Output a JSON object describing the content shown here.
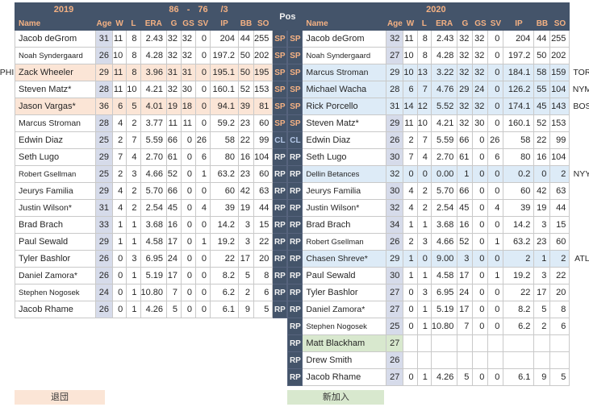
{
  "pos_header": "Pos",
  "columns": [
    "Name",
    "Age",
    "W",
    "L",
    "ERA",
    "G",
    "GS",
    "SV",
    "IP",
    "BB",
    "SO"
  ],
  "left_table": {
    "season": "2019",
    "record": {
      "wins": "86",
      "dash": "-",
      "losses": "76",
      "rank": "/3"
    },
    "rows": [
      {
        "name": "Jacob deGrom",
        "age": 31,
        "w": 11,
        "l": 8,
        "era": "2.43",
        "g": 32,
        "gs": 32,
        "sv": 0,
        "ip": "204",
        "bb": 44,
        "so": 255,
        "pos": "SP",
        "hl": ""
      },
      {
        "name": "Noah Syndergaard",
        "age": 26,
        "w": 10,
        "l": 8,
        "era": "4.28",
        "g": 32,
        "gs": 32,
        "sv": 0,
        "ip": "197.2",
        "bb": 50,
        "so": 202,
        "pos": "SP",
        "hl": ""
      },
      {
        "name": "Zack Wheeler",
        "age": 29,
        "w": 11,
        "l": 8,
        "era": "3.96",
        "g": 31,
        "gs": 31,
        "sv": 0,
        "ip": "195.1",
        "bb": 50,
        "so": 195,
        "pos": "SP",
        "hl": "departed"
      },
      {
        "name": "Steven Matz*",
        "age": 28,
        "w": 11,
        "l": 10,
        "era": "4.21",
        "g": 32,
        "gs": 30,
        "sv": 0,
        "ip": "160.1",
        "bb": 52,
        "so": 153,
        "pos": "SP",
        "hl": ""
      },
      {
        "name": "Jason Vargas*",
        "age": 36,
        "w": 6,
        "l": 5,
        "era": "4.01",
        "g": 19,
        "gs": 18,
        "sv": 0,
        "ip": "94.1",
        "bb": 39,
        "so": 81,
        "pos": "SP",
        "hl": "departed"
      },
      {
        "name": "Marcus Stroman",
        "age": 28,
        "w": 4,
        "l": 2,
        "era": "3.77",
        "g": 11,
        "gs": 11,
        "sv": 0,
        "ip": "59.2",
        "bb": 23,
        "so": 60,
        "pos": "SP",
        "hl": ""
      },
      {
        "name": "Edwin Diaz",
        "age": 25,
        "w": 2,
        "l": 7,
        "era": "5.59",
        "g": 66,
        "gs": 0,
        "sv": 26,
        "ip": "58",
        "bb": 22,
        "so": 99,
        "pos": "CL",
        "hl": ""
      },
      {
        "name": "Seth Lugo",
        "age": 29,
        "w": 7,
        "l": 4,
        "era": "2.70",
        "g": 61,
        "gs": 0,
        "sv": 6,
        "ip": "80",
        "bb": 16,
        "so": 104,
        "pos": "RP",
        "hl": ""
      },
      {
        "name": "Robert Gsellman",
        "age": 25,
        "w": 2,
        "l": 3,
        "era": "4.66",
        "g": 52,
        "gs": 0,
        "sv": 1,
        "ip": "63.2",
        "bb": 23,
        "so": 60,
        "pos": "RP",
        "hl": ""
      },
      {
        "name": "Jeurys Familia",
        "age": 29,
        "w": 4,
        "l": 2,
        "era": "5.70",
        "g": 66,
        "gs": 0,
        "sv": 0,
        "ip": "60",
        "bb": 42,
        "so": 63,
        "pos": "RP",
        "hl": ""
      },
      {
        "name": "Justin Wilson*",
        "age": 31,
        "w": 4,
        "l": 2,
        "era": "2.54",
        "g": 45,
        "gs": 0,
        "sv": 4,
        "ip": "39",
        "bb": 19,
        "so": 44,
        "pos": "RP",
        "hl": ""
      },
      {
        "name": "Brad Brach",
        "age": 33,
        "w": 1,
        "l": 1,
        "era": "3.68",
        "g": 16,
        "gs": 0,
        "sv": 0,
        "ip": "14.2",
        "bb": 3,
        "so": 15,
        "pos": "RP",
        "hl": ""
      },
      {
        "name": "Paul Sewald",
        "age": 29,
        "w": 1,
        "l": 1,
        "era": "4.58",
        "g": 17,
        "gs": 0,
        "sv": 1,
        "ip": "19.2",
        "bb": 3,
        "so": 22,
        "pos": "RP",
        "hl": ""
      },
      {
        "name": "Tyler Bashlor",
        "age": 26,
        "w": 0,
        "l": 3,
        "era": "6.95",
        "g": 24,
        "gs": 0,
        "sv": 0,
        "ip": "22",
        "bb": 17,
        "so": 20,
        "pos": "RP",
        "hl": ""
      },
      {
        "name": "Daniel Zamora*",
        "age": 26,
        "w": 0,
        "l": 1,
        "era": "5.19",
        "g": 17,
        "gs": 0,
        "sv": 0,
        "ip": "8.2",
        "bb": 5,
        "so": 8,
        "pos": "RP",
        "hl": ""
      },
      {
        "name": "Stephen Nogosek",
        "age": 24,
        "w": 0,
        "l": 1,
        "era": "10.80",
        "g": 7,
        "gs": 0,
        "sv": 0,
        "ip": "6.2",
        "bb": 2,
        "so": 6,
        "pos": "RP",
        "hl": ""
      },
      {
        "name": "Jacob Rhame",
        "age": 26,
        "w": 0,
        "l": 1,
        "era": "4.26",
        "g": 5,
        "gs": 0,
        "sv": 0,
        "ip": "6.1",
        "bb": 9,
        "so": 5,
        "pos": "RP",
        "hl": ""
      }
    ]
  },
  "right_table": {
    "season": "2020",
    "rows": [
      {
        "name": "Jacob deGrom",
        "age": 32,
        "w": 11,
        "l": 8,
        "era": "2.43",
        "g": 32,
        "gs": 32,
        "sv": 0,
        "ip": "204",
        "bb": 44,
        "so": 255,
        "pos": "SP",
        "hl": ""
      },
      {
        "name": "Noah Syndergaard",
        "age": 27,
        "w": 10,
        "l": 8,
        "era": "4.28",
        "g": 32,
        "gs": 32,
        "sv": 0,
        "ip": "197.2",
        "bb": 50,
        "so": 202,
        "pos": "SP",
        "hl": ""
      },
      {
        "name": "Marcus Stroman",
        "age": 29,
        "w": 10,
        "l": 13,
        "era": "3.22",
        "g": 32,
        "gs": 32,
        "sv": 0,
        "ip": "184.1",
        "bb": 58,
        "so": 159,
        "pos": "SP",
        "hl": "incoming"
      },
      {
        "name": "Michael Wacha",
        "age": 28,
        "w": 6,
        "l": 7,
        "era": "4.76",
        "g": 29,
        "gs": 24,
        "sv": 0,
        "ip": "126.2",
        "bb": 55,
        "so": 104,
        "pos": "SP",
        "hl": "incoming"
      },
      {
        "name": "Rick Porcello",
        "age": 31,
        "w": 14,
        "l": 12,
        "era": "5.52",
        "g": 32,
        "gs": 32,
        "sv": 0,
        "ip": "174.1",
        "bb": 45,
        "so": 143,
        "pos": "SP",
        "hl": "incoming"
      },
      {
        "name": "Steven Matz*",
        "age": 29,
        "w": 11,
        "l": 10,
        "era": "4.21",
        "g": 32,
        "gs": 30,
        "sv": 0,
        "ip": "160.1",
        "bb": 52,
        "so": 153,
        "pos": "SP",
        "hl": ""
      },
      {
        "name": "Edwin Diaz",
        "age": 26,
        "w": 2,
        "l": 7,
        "era": "5.59",
        "g": 66,
        "gs": 0,
        "sv": 26,
        "ip": "58",
        "bb": 22,
        "so": 99,
        "pos": "CL",
        "hl": ""
      },
      {
        "name": "Seth Lugo",
        "age": 30,
        "w": 7,
        "l": 4,
        "era": "2.70",
        "g": 61,
        "gs": 0,
        "sv": 6,
        "ip": "80",
        "bb": 16,
        "so": 104,
        "pos": "RP",
        "hl": ""
      },
      {
        "name": "Dellin Betances",
        "age": 32,
        "w": 0,
        "l": 0,
        "era": "0.00",
        "g": 1,
        "gs": 0,
        "sv": 0,
        "ip": "0.2",
        "bb": 0,
        "so": 2,
        "pos": "RP",
        "hl": "incoming"
      },
      {
        "name": "Jeurys Familia",
        "age": 30,
        "w": 4,
        "l": 2,
        "era": "5.70",
        "g": 66,
        "gs": 0,
        "sv": 0,
        "ip": "60",
        "bb": 42,
        "so": 63,
        "pos": "RP",
        "hl": ""
      },
      {
        "name": "Justin Wilson*",
        "age": 32,
        "w": 4,
        "l": 2,
        "era": "2.54",
        "g": 45,
        "gs": 0,
        "sv": 4,
        "ip": "39",
        "bb": 19,
        "so": 44,
        "pos": "RP",
        "hl": ""
      },
      {
        "name": "Brad Brach",
        "age": 34,
        "w": 1,
        "l": 1,
        "era": "3.68",
        "g": 16,
        "gs": 0,
        "sv": 0,
        "ip": "14.2",
        "bb": 3,
        "so": 15,
        "pos": "RP",
        "hl": ""
      },
      {
        "name": "Robert Gsellman",
        "age": 26,
        "w": 2,
        "l": 3,
        "era": "4.66",
        "g": 52,
        "gs": 0,
        "sv": 1,
        "ip": "63.2",
        "bb": 23,
        "so": 60,
        "pos": "RP",
        "hl": ""
      },
      {
        "name": "Chasen Shreve*",
        "age": 29,
        "w": 1,
        "l": 0,
        "era": "9.00",
        "g": 3,
        "gs": 0,
        "sv": 0,
        "ip": "2",
        "bb": 1,
        "so": 2,
        "pos": "RP",
        "hl": "incoming"
      },
      {
        "name": "Paul Sewald",
        "age": 30,
        "w": 1,
        "l": 1,
        "era": "4.58",
        "g": 17,
        "gs": 0,
        "sv": 1,
        "ip": "19.2",
        "bb": 3,
        "so": 22,
        "pos": "RP",
        "hl": ""
      },
      {
        "name": "Tyler Bashlor",
        "age": 27,
        "w": 0,
        "l": 3,
        "era": "6.95",
        "g": 24,
        "gs": 0,
        "sv": 0,
        "ip": "22",
        "bb": 17,
        "so": 20,
        "pos": "RP",
        "hl": ""
      },
      {
        "name": "Daniel Zamora*",
        "age": 27,
        "w": 0,
        "l": 1,
        "era": "5.19",
        "g": 17,
        "gs": 0,
        "sv": 0,
        "ip": "8.2",
        "bb": 5,
        "so": 8,
        "pos": "RP",
        "hl": ""
      },
      {
        "name": "Stephen Nogosek",
        "age": 25,
        "w": 0,
        "l": 1,
        "era": "10.80",
        "g": 7,
        "gs": 0,
        "sv": 0,
        "ip": "6.2",
        "bb": 2,
        "so": 6,
        "pos": "RP",
        "hl": ""
      },
      {
        "name": "Matt Blackham",
        "age": 27,
        "w": "",
        "l": "",
        "era": "",
        "g": "",
        "gs": "",
        "sv": "",
        "ip": "",
        "bb": "",
        "so": "",
        "pos": "RP",
        "hl": "new"
      },
      {
        "name": "Drew Smith",
        "age": 26,
        "w": "",
        "l": "",
        "era": "",
        "g": "",
        "gs": "",
        "sv": "",
        "ip": "",
        "bb": "",
        "so": "",
        "pos": "RP",
        "hl": ""
      },
      {
        "name": "Jacob Rhame",
        "age": 27,
        "w": 0,
        "l": 1,
        "era": "4.26",
        "g": 5,
        "gs": 0,
        "sv": 0,
        "ip": "6.1",
        "bb": 9,
        "so": 5,
        "pos": "RP",
        "hl": ""
      }
    ]
  },
  "outer_labels": {
    "left": [
      {
        "text": "PHI",
        "row": 3
      }
    ],
    "right": [
      {
        "text": "TOR",
        "row": 3
      },
      {
        "text": "NYM",
        "row": 4
      },
      {
        "text": "BOS",
        "row": 5
      },
      {
        "text": "NYY",
        "row": 9
      },
      {
        "text": "ATL",
        "row": 14
      }
    ]
  },
  "footer": {
    "departed_label": "退団",
    "new_joined_label": "新加入"
  },
  "colors": {
    "header_bg": "#44546A",
    "header_text": "#F4B183",
    "sp_text": "#F4B183",
    "cl_text": "#B4C7E7",
    "rp_text": "#F2F2F2",
    "departed": "#FBE5D6",
    "incoming": "#DDEBF7",
    "new_player": "#D8E8CE",
    "age_column": "#D6DBEA"
  }
}
